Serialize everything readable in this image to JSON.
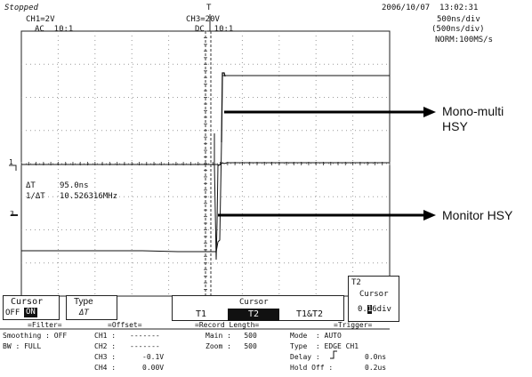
{
  "header": {
    "status": "Stopped",
    "datetime": "2006/10/07  13:02:31",
    "ch1_scale": "CH1=2V",
    "ch1_coupling": "AC  10:1",
    "ch3_scale": "CH3=20V",
    "ch3_coupling": "DC  10:1",
    "timebase": "500ns/div",
    "timebase2": "(500ns/div)",
    "acq_mode": "NORM:100MS/s",
    "trigger_marker": "T"
  },
  "markers": {
    "ch1": "1",
    "ch3": "3"
  },
  "measurement": {
    "dt_label": "ΔT",
    "dt_value": "95.0ns",
    "freq_label": "1/ΔT",
    "freq_value": "10.526316MHz"
  },
  "annotations": {
    "mono_line1": "Mono-multi",
    "mono_line2": "HSY",
    "monitor": "Monitor HSY"
  },
  "menu": {
    "cursor_label": "Cursor",
    "cursor_off": "OFF",
    "cursor_on": "ON",
    "type_label": "Type",
    "type_value": "ΔT",
    "cursor_tab_title": "Cursor",
    "tab_t1": "T1",
    "tab_t2": "T2",
    "tab_t1t2": "T1&T2",
    "t2_title": "T2",
    "t2_sub": "Cursor",
    "t2_value_a": "0.",
    "t2_value_sel": "1",
    "t2_value_b": "6div"
  },
  "filter": {
    "heading": "=Filter=",
    "smoothing": "Smoothing : OFF",
    "bw": "BW : FULL"
  },
  "offset": {
    "heading": "=Offset=",
    "rows": [
      {
        "ch": "CH1 :",
        "val": "-------"
      },
      {
        "ch": "CH2 :",
        "val": "-------"
      },
      {
        "ch": "CH3 :",
        "val": "-0.1V"
      },
      {
        "ch": "CH4 :",
        "val": "0.00V"
      }
    ]
  },
  "record": {
    "heading": "=Record Length=",
    "main": "Main :   500",
    "zoom": "Zoom :   500"
  },
  "trigger": {
    "heading": "=Trigger=",
    "mode": "Mode  : AUTO",
    "type": "Type  : EDGE CH1",
    "delay_label": "Delay :",
    "delay_value": "0.0ns",
    "holdoff_label": "Hold Off :",
    "holdoff_value": "0.2us"
  },
  "colors": {
    "trace": "#111111",
    "grid": "#9a9a9a",
    "annotation_arrow": "#000000"
  }
}
